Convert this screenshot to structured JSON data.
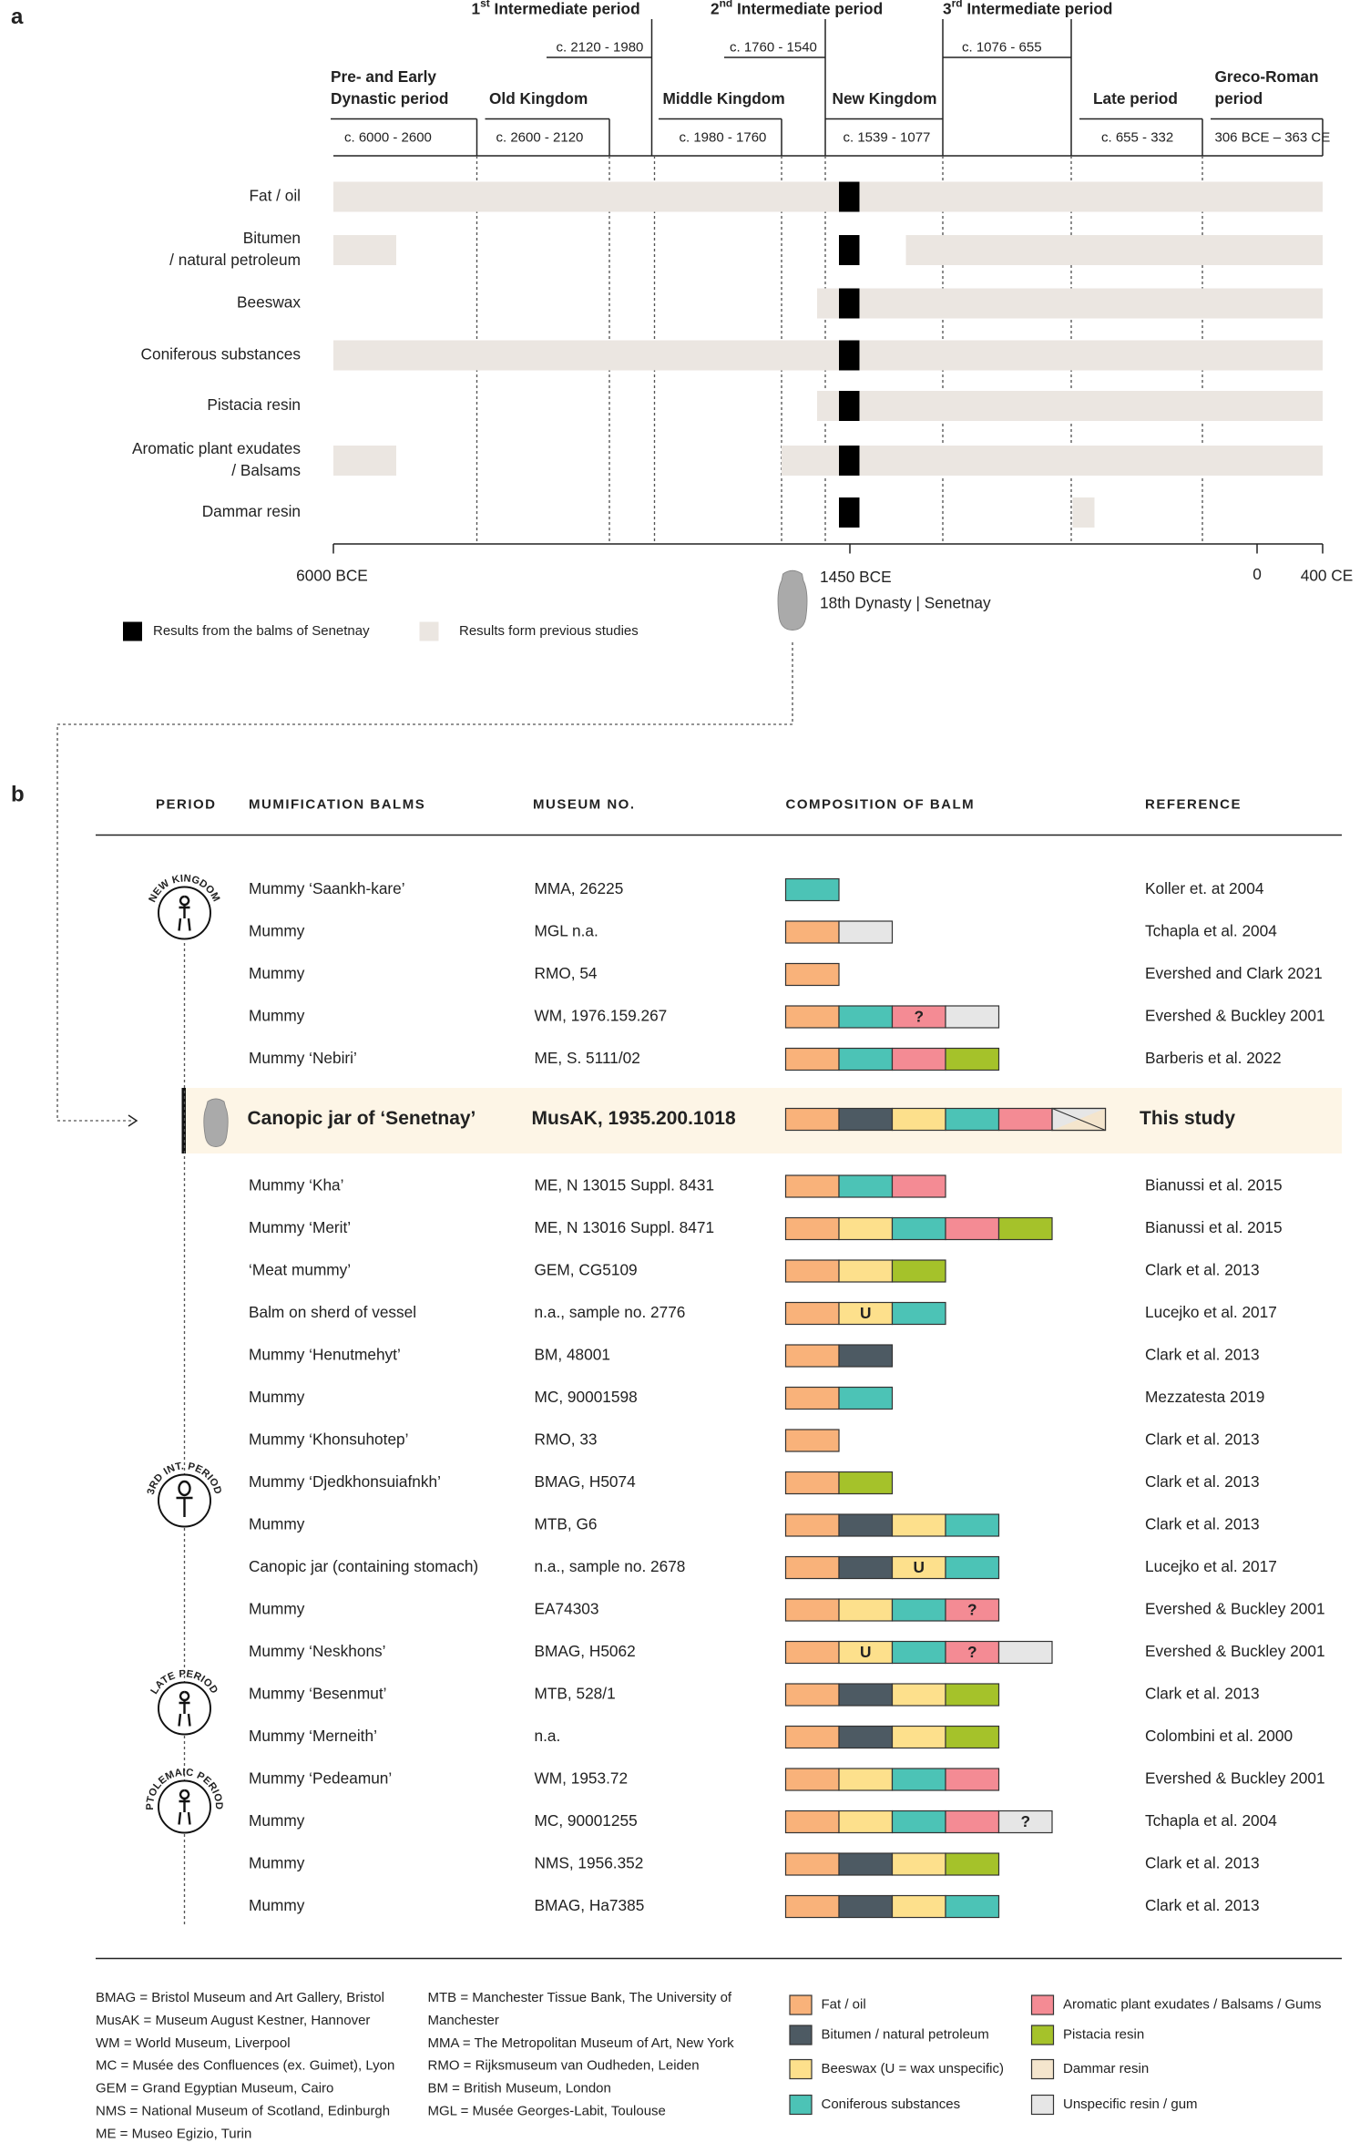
{
  "panel_a": {
    "letter": "a",
    "intermediate": [
      {
        "ordinal": "1",
        "suffix": "st",
        "label": " Intermediate period",
        "dates": "c. 2120 - 1980"
      },
      {
        "ordinal": "2",
        "suffix": "nd",
        "label": " Intermediate period",
        "dates": "c. 1760 - 1540"
      },
      {
        "ordinal": "3",
        "suffix": "rd",
        "label": " Intermediate period",
        "dates": "c. 1076 - 655"
      }
    ],
    "periods": [
      {
        "lines": [
          "Pre- and Early",
          "Dynastic period"
        ],
        "dates": "c. 6000 - 2600"
      },
      {
        "lines": [
          "Old Kingdom"
        ],
        "dates": "c. 2600 - 2120"
      },
      {
        "lines": [
          "Middle Kingdom"
        ],
        "dates": "c. 1980 - 1760"
      },
      {
        "lines": [
          "New Kingdom"
        ],
        "dates": "c. 1539 - 1077"
      },
      {
        "lines": [
          "Late period"
        ],
        "dates": "c. 655 - 332"
      },
      {
        "lines": [
          "Greco-Roman",
          "period"
        ],
        "dates": "306 BCE – 363 CE"
      }
    ],
    "substances": [
      {
        "lines": [
          "Fat / oil"
        ]
      },
      {
        "lines": [
          "Bitumen",
          "/ natural petroleum"
        ]
      },
      {
        "lines": [
          "Beeswax"
        ]
      },
      {
        "lines": [
          "Coniferous substances"
        ]
      },
      {
        "lines": [
          "Pistacia resin"
        ]
      },
      {
        "lines": [
          "Aromatic plant exudates",
          "/ Balsams"
        ]
      },
      {
        "lines": [
          "Dammar resin"
        ]
      }
    ],
    "axis": {
      "start": "6000 BCE",
      "mid": "1450 BCE",
      "mid_note": "18th Dynasty | Senetnay",
      "zero": "0",
      "end": "400 CE"
    },
    "legend": [
      {
        "label": "Results from the balms of Senetnay",
        "color": "#000000"
      },
      {
        "label": "Results form previous studies",
        "color": "#ebe6e1"
      }
    ]
  },
  "panel_b": {
    "letter": "b",
    "headers": [
      "PERIOD",
      "MUMIFICATION BALMS",
      "MUSEUM NO.",
      "COMPOSITION OF BALM",
      "REFERENCE"
    ],
    "periods": [
      "NEW KINGDOM",
      "3RD INT. PERIOD",
      "LATE PERIOD",
      "PTOLEMAIC PERIOD"
    ],
    "rows": [
      {
        "name": "Mummy ‘Saankh-kare’",
        "museum": "MMA, 26225",
        "reference": "Koller et. at 2004"
      },
      {
        "name": "Mummy",
        "museum": "MGL n.a.",
        "reference": "Tchapla et al. 2004"
      },
      {
        "name": "Mummy",
        "museum": "RMO, 54",
        "reference": "Evershed and Clark 2021"
      },
      {
        "name": "Mummy",
        "museum": "WM, 1976.159.267",
        "reference": "Evershed & Buckley 2001",
        "symbols": [
          "?"
        ]
      },
      {
        "name": "Mummy ‘Nebiri’",
        "museum": "ME, S. 5111/02",
        "reference": "Barberis et al. 2022"
      },
      {
        "name": "Canopic jar of ‘Senetnay’",
        "museum": "MusAK, 1935.200.1018",
        "reference": "This study"
      },
      {
        "name": "Mummy ‘Kha’",
        "museum": "ME, N 13015 Suppl. 8431",
        "reference": "Bianussi et al. 2015"
      },
      {
        "name": "Mummy ‘Merit’",
        "museum": "ME, N 13016 Suppl. 8471",
        "reference": "Bianussi et al. 2015"
      },
      {
        "name": "‘Meat mummy’",
        "museum": "GEM, CG5109",
        "reference": "Clark et al. 2013"
      },
      {
        "name": "Balm on sherd of vessel",
        "museum": "n.a., sample no. 2776",
        "reference": "Lucejko et al. 2017",
        "symbols": [
          "U"
        ]
      },
      {
        "name": "Mummy ‘Henutmehyt’",
        "museum": "BM, 48001",
        "reference": "Clark et al. 2013"
      },
      {
        "name": "Mummy",
        "museum": "MC, 90001598",
        "reference": "Mezzatesta 2019"
      },
      {
        "name": "Mummy ‘Khonsuhotep’",
        "museum": "RMO, 33",
        "reference": "Clark et al. 2013"
      },
      {
        "name": "Mummy ‘Djedkhonsuiafnkh’",
        "museum": "BMAG, H5074",
        "reference": "Clark et al. 2013"
      },
      {
        "name": "Mummy",
        "museum": "MTB, G6",
        "reference": "Clark et al. 2013"
      },
      {
        "name": "Canopic jar (containing stomach)",
        "museum": "n.a., sample no. 2678",
        "reference": "Lucejko et al. 2017",
        "symbols": [
          "U"
        ]
      },
      {
        "name": "Mummy",
        "museum": "EA74303",
        "reference": "Evershed & Buckley 2001",
        "symbols": [
          "?"
        ]
      },
      {
        "name": "Mummy ‘Neskhons’",
        "museum": "BMAG, H5062",
        "reference": "Evershed & Buckley 2001",
        "symbols": [
          "U",
          "?"
        ]
      },
      {
        "name": "Mummy ‘Besenmut’",
        "museum": "MTB, 528/1",
        "reference": "Clark et al. 2013"
      },
      {
        "name": "Mummy ‘Merneith’",
        "museum": "n.a.",
        "reference": "Colombini et al. 2000"
      },
      {
        "name": "Mummy ‘Pedeamun’",
        "museum": "WM, 1953.72",
        "reference": "Evershed & Buckley 2001"
      },
      {
        "name": "Mummy",
        "museum": "MC, 90001255",
        "reference": "Tchapla et al. 2004",
        "symbols": [
          "?"
        ]
      },
      {
        "name": "Mummy",
        "museum": "NMS, 1956.352",
        "reference": "Clark et al. 2013"
      },
      {
        "name": "Mummy",
        "museum": "BMAG, Ha7385",
        "reference": "Clark et al. 2013"
      }
    ],
    "abbreviations_left": [
      "BMAG = Bristol Museum and Art Gallery, Bristol",
      "MusAK = Museum August Kestner, Hannover",
      "WM = World Museum, Liverpool",
      "MC = Musée des Confluences (ex. Guimet), Lyon",
      "GEM = Grand Egyptian Museum, Cairo",
      "NMS = National Museum of Scotland, Edinburgh",
      "ME = Museo Egizio, Turin"
    ],
    "abbreviations_right": [
      "MTB = Manchester Tissue Bank, The University of",
      "Manchester",
      "MMA = The Metropolitan Museum of Art, New York",
      "RMO = Rijksmuseum van Oudheden, Leiden",
      "BM = British Museum, London",
      "MGL = Musée Georges-Labit, Toulouse"
    ],
    "legend": [
      {
        "label": "Fat / oil",
        "color": "#f9b27a"
      },
      {
        "label": "Bitumen / natural petroleum",
        "color": "#4d5a63"
      },
      {
        "label": "Beeswax (U = wax unspecific)",
        "color": "#fde08c"
      },
      {
        "label": "Coniferous substances",
        "color": "#4cc3b6"
      },
      {
        "label": "Aromatic plant exudates / Balsams / Gums",
        "color": "#f48b94"
      },
      {
        "label": "Pistacia resin",
        "color": "#a5c22a"
      },
      {
        "label": "Dammar resin",
        "color": "#f4e5cd"
      },
      {
        "label": "Unspecific resin / gum",
        "color": "#e6e6e6"
      }
    ]
  }
}
